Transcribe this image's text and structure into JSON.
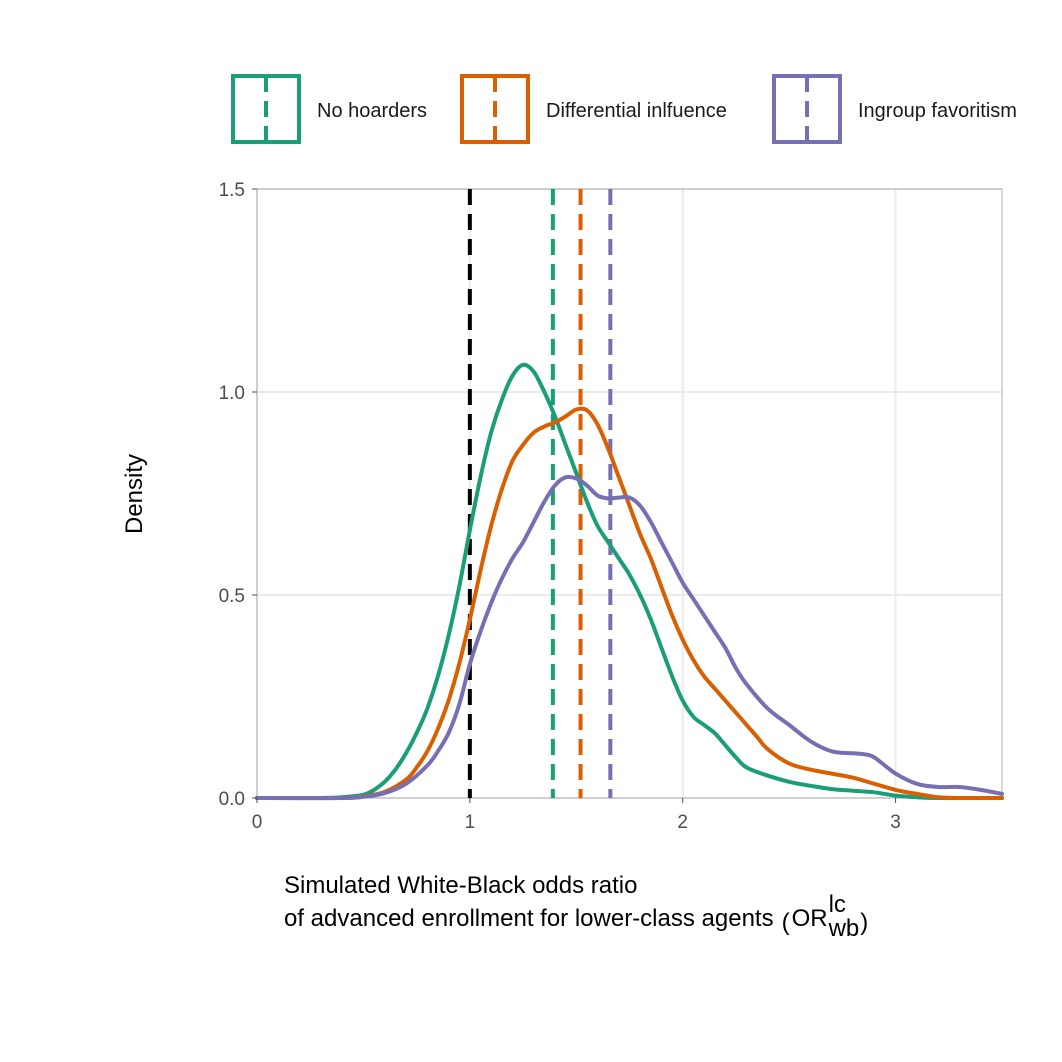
{
  "chart_data": {
    "type": "line",
    "title": "",
    "xlabel_line1": "Simulated White-Black odds ratio",
    "xlabel_line2": "of advanced enrollment for lower-class agents",
    "xlabel_symbol": "OR",
    "xlabel_symbol_sup": "lc",
    "xlabel_symbol_sub": "wb",
    "ylabel": "Density",
    "xlim": [
      0,
      3.5
    ],
    "ylim": [
      0,
      1.5
    ],
    "x_ticks": [
      0,
      1,
      2,
      3
    ],
    "x_tick_labels": [
      "0",
      "1",
      "2",
      "3"
    ],
    "y_ticks": [
      0,
      0.5,
      1.0,
      1.5
    ],
    "y_tick_labels": [
      "0.0",
      "0.5",
      "1.0",
      "1.5"
    ],
    "grid": true,
    "legend_position": "top",
    "reference_line": {
      "x": 1,
      "color": "#000000",
      "style": "dashed"
    },
    "series": [
      {
        "name": "No hoarders",
        "color": "#1b9e77",
        "mean": 1.39,
        "points": [
          [
            0,
            0
          ],
          [
            0.3,
            0
          ],
          [
            0.4,
            0.002
          ],
          [
            0.5,
            0.008
          ],
          [
            0.55,
            0.02
          ],
          [
            0.6,
            0.04
          ],
          [
            0.65,
            0.07
          ],
          [
            0.7,
            0.11
          ],
          [
            0.75,
            0.16
          ],
          [
            0.8,
            0.22
          ],
          [
            0.85,
            0.3
          ],
          [
            0.9,
            0.4
          ],
          [
            0.95,
            0.52
          ],
          [
            1.0,
            0.66
          ],
          [
            1.05,
            0.79
          ],
          [
            1.1,
            0.9
          ],
          [
            1.15,
            0.98
          ],
          [
            1.2,
            1.04
          ],
          [
            1.25,
            1.067
          ],
          [
            1.3,
            1.05
          ],
          [
            1.35,
            1.0
          ],
          [
            1.4,
            0.94
          ],
          [
            1.45,
            0.87
          ],
          [
            1.5,
            0.8
          ],
          [
            1.55,
            0.73
          ],
          [
            1.6,
            0.67
          ],
          [
            1.65,
            0.63
          ],
          [
            1.7,
            0.59
          ],
          [
            1.75,
            0.55
          ],
          [
            1.8,
            0.5
          ],
          [
            1.85,
            0.44
          ],
          [
            1.9,
            0.37
          ],
          [
            1.95,
            0.3
          ],
          [
            2.0,
            0.24
          ],
          [
            2.05,
            0.2
          ],
          [
            2.1,
            0.18
          ],
          [
            2.15,
            0.16
          ],
          [
            2.2,
            0.13
          ],
          [
            2.25,
            0.1
          ],
          [
            2.3,
            0.075
          ],
          [
            2.4,
            0.055
          ],
          [
            2.5,
            0.04
          ],
          [
            2.6,
            0.03
          ],
          [
            2.7,
            0.022
          ],
          [
            2.8,
            0.018
          ],
          [
            2.9,
            0.014
          ],
          [
            3.0,
            0.006
          ],
          [
            3.1,
            0.002
          ],
          [
            3.2,
            0
          ],
          [
            3.5,
            0
          ]
        ]
      },
      {
        "name": "Differential inlfuence",
        "color": "#d95f02",
        "mean": 1.52,
        "points": [
          [
            0,
            0
          ],
          [
            0.4,
            0
          ],
          [
            0.5,
            0.004
          ],
          [
            0.6,
            0.015
          ],
          [
            0.7,
            0.045
          ],
          [
            0.75,
            0.075
          ],
          [
            0.8,
            0.115
          ],
          [
            0.85,
            0.17
          ],
          [
            0.9,
            0.24
          ],
          [
            0.95,
            0.33
          ],
          [
            1.0,
            0.44
          ],
          [
            1.05,
            0.56
          ],
          [
            1.1,
            0.67
          ],
          [
            1.15,
            0.76
          ],
          [
            1.2,
            0.83
          ],
          [
            1.25,
            0.87
          ],
          [
            1.3,
            0.9
          ],
          [
            1.35,
            0.915
          ],
          [
            1.4,
            0.925
          ],
          [
            1.45,
            0.94
          ],
          [
            1.5,
            0.957
          ],
          [
            1.55,
            0.955
          ],
          [
            1.6,
            0.92
          ],
          [
            1.65,
            0.86
          ],
          [
            1.7,
            0.79
          ],
          [
            1.75,
            0.72
          ],
          [
            1.8,
            0.65
          ],
          [
            1.85,
            0.59
          ],
          [
            1.9,
            0.52
          ],
          [
            1.95,
            0.45
          ],
          [
            2.0,
            0.39
          ],
          [
            2.05,
            0.34
          ],
          [
            2.1,
            0.3
          ],
          [
            2.15,
            0.27
          ],
          [
            2.2,
            0.24
          ],
          [
            2.25,
            0.21
          ],
          [
            2.3,
            0.18
          ],
          [
            2.35,
            0.15
          ],
          [
            2.4,
            0.12
          ],
          [
            2.5,
            0.085
          ],
          [
            2.6,
            0.07
          ],
          [
            2.7,
            0.06
          ],
          [
            2.8,
            0.05
          ],
          [
            2.9,
            0.035
          ],
          [
            3.0,
            0.02
          ],
          [
            3.1,
            0.01
          ],
          [
            3.2,
            0.002
          ],
          [
            3.3,
            0
          ],
          [
            3.5,
            0
          ]
        ]
      },
      {
        "name": "Ingroup favoritism",
        "color": "#7570b3",
        "mean": 1.66,
        "points": [
          [
            0,
            0
          ],
          [
            0.4,
            0
          ],
          [
            0.5,
            0.003
          ],
          [
            0.6,
            0.012
          ],
          [
            0.7,
            0.035
          ],
          [
            0.8,
            0.08
          ],
          [
            0.85,
            0.115
          ],
          [
            0.9,
            0.16
          ],
          [
            0.95,
            0.23
          ],
          [
            1.0,
            0.33
          ],
          [
            1.05,
            0.41
          ],
          [
            1.1,
            0.48
          ],
          [
            1.15,
            0.54
          ],
          [
            1.2,
            0.59
          ],
          [
            1.25,
            0.63
          ],
          [
            1.3,
            0.68
          ],
          [
            1.35,
            0.73
          ],
          [
            1.4,
            0.77
          ],
          [
            1.45,
            0.79
          ],
          [
            1.5,
            0.787
          ],
          [
            1.55,
            0.77
          ],
          [
            1.6,
            0.745
          ],
          [
            1.65,
            0.738
          ],
          [
            1.7,
            0.74
          ],
          [
            1.75,
            0.74
          ],
          [
            1.8,
            0.72
          ],
          [
            1.85,
            0.68
          ],
          [
            1.9,
            0.63
          ],
          [
            1.95,
            0.58
          ],
          [
            2.0,
            0.53
          ],
          [
            2.05,
            0.49
          ],
          [
            2.1,
            0.45
          ],
          [
            2.15,
            0.41
          ],
          [
            2.2,
            0.37
          ],
          [
            2.25,
            0.32
          ],
          [
            2.3,
            0.28
          ],
          [
            2.4,
            0.22
          ],
          [
            2.5,
            0.18
          ],
          [
            2.6,
            0.14
          ],
          [
            2.7,
            0.115
          ],
          [
            2.8,
            0.11
          ],
          [
            2.85,
            0.108
          ],
          [
            2.9,
            0.1
          ],
          [
            3.0,
            0.06
          ],
          [
            3.1,
            0.035
          ],
          [
            3.2,
            0.027
          ],
          [
            3.3,
            0.027
          ],
          [
            3.4,
            0.02
          ],
          [
            3.5,
            0.01
          ]
        ]
      }
    ]
  }
}
